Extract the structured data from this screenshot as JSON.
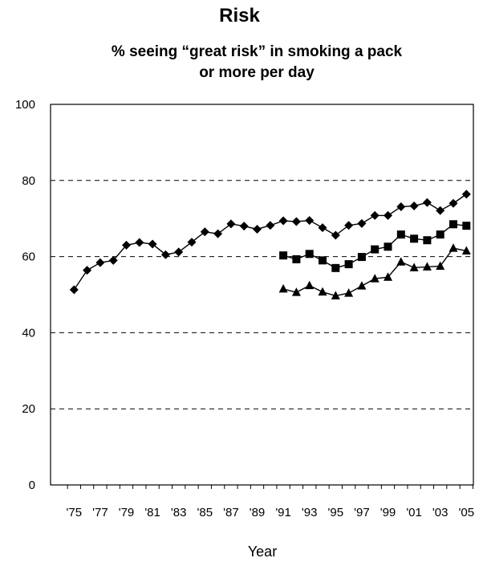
{
  "chart_data": {
    "type": "line",
    "title": "Risk",
    "subtitle_lines": [
      "% seeing “great risk” in smoking a pack",
      "or more per day"
    ],
    "xlabel": "Year",
    "ylabel": "",
    "ylim": [
      0,
      100
    ],
    "yticks": [
      "0",
      "20",
      "40",
      "60",
      "80",
      "100"
    ],
    "xticks": [
      "'75",
      "'77",
      "'79",
      "'81",
      "'83",
      "'85",
      "'87",
      "'89",
      "'91",
      "'93",
      "'95",
      "'97",
      "'99",
      "'01",
      "'03",
      "'05"
    ],
    "grid": "horizontal dashed",
    "series": [
      {
        "marker": "diamond",
        "color": "#000000",
        "x": [
          1975,
          1976,
          1977,
          1978,
          1979,
          1980,
          1981,
          1982,
          1983,
          1984,
          1985,
          1986,
          1987,
          1988,
          1989,
          1990,
          1991,
          1992,
          1993,
          1994,
          1995,
          1996,
          1997,
          1998,
          1999,
          2000,
          2001,
          2002,
          2003,
          2004,
          2005
        ],
        "values": [
          51.3,
          56.4,
          58.4,
          59.0,
          63.0,
          63.7,
          63.3,
          60.5,
          61.2,
          63.8,
          66.5,
          66.0,
          68.6,
          68.0,
          67.2,
          68.2,
          69.4,
          69.2,
          69.5,
          67.6,
          65.6,
          68.2,
          68.7,
          70.8,
          70.8,
          73.1,
          73.3,
          74.2,
          72.1,
          74.0,
          76.4
        ]
      },
      {
        "marker": "square",
        "color": "#000000",
        "x": [
          1991,
          1992,
          1993,
          1994,
          1995,
          1996,
          1997,
          1998,
          1999,
          2000,
          2001,
          2002,
          2003,
          2004,
          2005
        ],
        "values": [
          60.3,
          59.3,
          60.7,
          59.0,
          57.0,
          58.0,
          59.9,
          61.9,
          62.6,
          65.8,
          64.7,
          64.3,
          65.8,
          68.5,
          68.1
        ]
      },
      {
        "marker": "triangle",
        "color": "#000000",
        "x": [
          1991,
          1992,
          1993,
          1994,
          1995,
          1996,
          1997,
          1998,
          1999,
          2000,
          2001,
          2002,
          2003,
          2004,
          2005
        ],
        "values": [
          51.5,
          50.6,
          52.4,
          50.7,
          49.7,
          50.4,
          52.3,
          54.2,
          54.6,
          58.6,
          57.1,
          57.3,
          57.5,
          62.2,
          61.5
        ]
      }
    ]
  }
}
